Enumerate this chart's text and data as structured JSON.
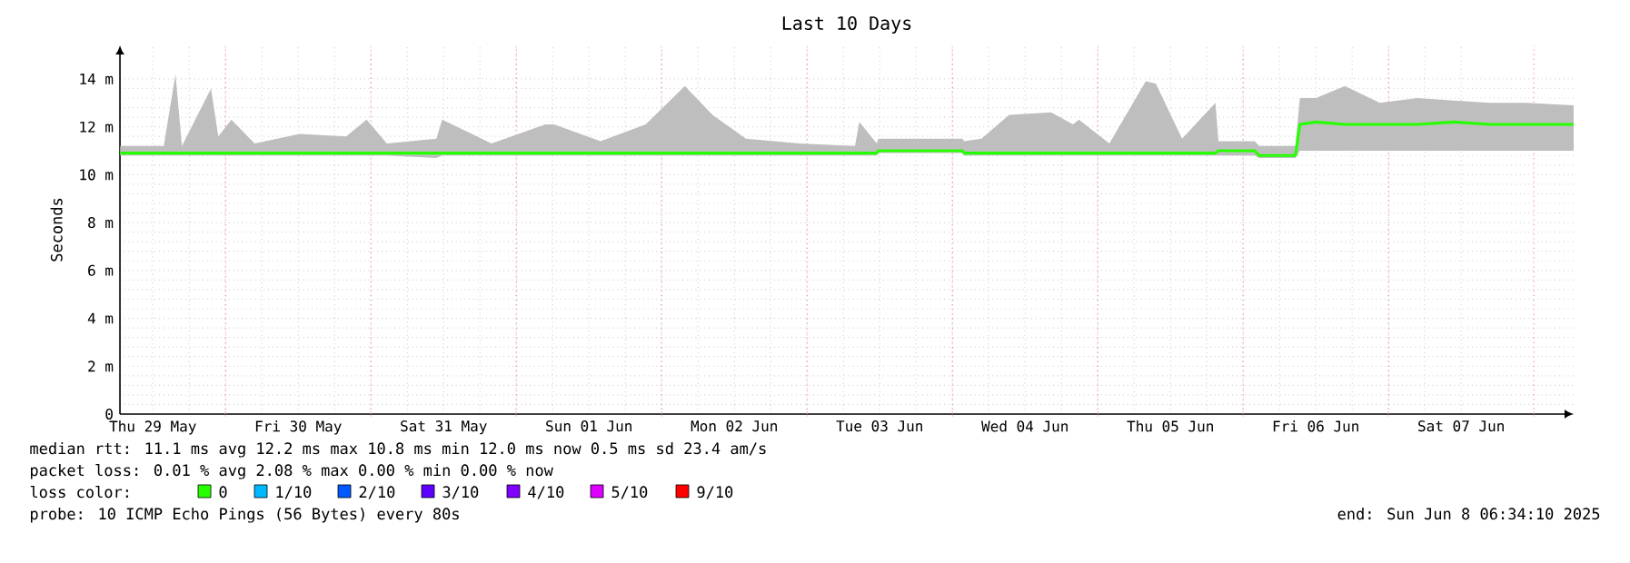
{
  "chart_data": {
    "type": "line",
    "title": "Last 10 Days",
    "ylabel": "Seconds",
    "x": [
      "2025-05-29T06:36",
      "2025-05-29T13:48",
      "2025-05-29T15:44",
      "2025-05-29T16:48",
      "2025-05-29T21:36",
      "2025-05-29T22:48",
      "2025-05-30T00:58",
      "2025-05-30T04:48",
      "2025-05-30T12:14",
      "2025-05-30T19:55",
      "2025-05-30T23:17",
      "2025-05-31T02:38",
      "2025-05-31T10:48",
      "2025-05-31T11:46",
      "2025-05-31T19:55",
      "2025-06-01T04:48",
      "2025-06-01T06:14",
      "2025-06-01T13:55",
      "2025-06-01T21:22",
      "2025-06-02T03:50",
      "2025-06-02T08:24",
      "2025-06-02T13:55",
      "2025-06-02T22:48",
      "2025-06-03T07:55",
      "2025-06-03T08:38",
      "2025-06-03T11:31",
      "2025-06-03T11:46",
      "2025-06-03T16:48",
      "2025-06-04T01:41",
      "2025-06-04T01:55",
      "2025-06-04T04:48",
      "2025-06-04T09:22",
      "2025-06-04T16:19",
      "2025-06-04T19:55",
      "2025-06-04T20:53",
      "2025-06-05T01:55",
      "2025-06-05T07:55",
      "2025-06-05T09:36",
      "2025-06-05T13:55",
      "2025-06-05T19:26",
      "2025-06-05T19:55",
      "2025-06-06T01:55",
      "2025-06-06T02:38",
      "2025-06-06T08:38",
      "2025-06-06T09:22",
      "2025-06-06T12:00",
      "2025-06-06T16:48",
      "2025-06-06T22:34",
      "2025-06-07T04:48",
      "2025-06-07T10:48",
      "2025-06-07T16:48",
      "2025-06-07T22:48",
      "2025-06-08T06:34"
    ],
    "series": [
      {
        "name": "0",
        "color": "#26ff00",
        "values": [
          10.9,
          10.9,
          10.9,
          10.9,
          10.9,
          10.9,
          10.9,
          10.9,
          10.9,
          10.9,
          10.9,
          10.9,
          10.9,
          10.9,
          10.9,
          10.9,
          10.9,
          10.9,
          10.9,
          10.9,
          10.9,
          10.9,
          10.9,
          10.9,
          10.9,
          10.9,
          11.0,
          11.0,
          11.0,
          10.9,
          10.9,
          10.9,
          10.9,
          10.9,
          10.9,
          10.9,
          10.9,
          10.9,
          10.9,
          10.9,
          11.0,
          11.0,
          10.8,
          10.8,
          12.1,
          12.2,
          12.1,
          12.1,
          12.1,
          12.2,
          12.1,
          12.1,
          12.1
        ],
        "lower": [
          10.8,
          10.8,
          10.8,
          10.8,
          10.8,
          10.8,
          10.8,
          10.8,
          10.8,
          10.8,
          10.8,
          10.8,
          10.7,
          10.8,
          10.8,
          10.8,
          10.8,
          10.8,
          10.8,
          10.8,
          10.8,
          10.8,
          10.8,
          10.8,
          10.8,
          10.8,
          10.9,
          10.9,
          10.9,
          10.8,
          10.8,
          10.8,
          10.8,
          10.8,
          10.8,
          10.8,
          10.8,
          10.8,
          10.8,
          10.8,
          10.8,
          10.8,
          10.7,
          10.7,
          11.0,
          11.0,
          11.0,
          11.0,
          11.0,
          11.0,
          11.0,
          11.0,
          11.0
        ],
        "upper": [
          11.2,
          11.2,
          14.2,
          11.2,
          13.6,
          11.6,
          12.3,
          11.3,
          11.7,
          11.6,
          12.3,
          11.3,
          11.5,
          12.3,
          11.3,
          12.1,
          12.1,
          11.4,
          12.1,
          13.7,
          12.5,
          11.5,
          11.3,
          11.2,
          12.2,
          11.3,
          11.5,
          11.5,
          11.5,
          11.4,
          11.5,
          12.5,
          12.6,
          12.1,
          12.3,
          11.3,
          13.9,
          13.8,
          11.5,
          13.0,
          11.4,
          11.4,
          11.2,
          11.2,
          13.2,
          13.2,
          13.7,
          13.0,
          13.2,
          13.1,
          13.0,
          13.0,
          12.9
        ]
      },
      {
        "name": "1/10",
        "color": "#00b8ff",
        "values": [
          null,
          null,
          null,
          null,
          null,
          null,
          null,
          null,
          null,
          null,
          null,
          null,
          null,
          null,
          null,
          null,
          null,
          null,
          null,
          null,
          null,
          null,
          null,
          null,
          null,
          null,
          null,
          null,
          null,
          null,
          null,
          null,
          null,
          null,
          null,
          null,
          null,
          null,
          null,
          null,
          null,
          null,
          null,
          null,
          null,
          null,
          null,
          null,
          null,
          null,
          null,
          null,
          null
        ]
      },
      {
        "name": "2/10",
        "color": "#0059ff",
        "values": [
          null,
          null,
          null,
          null,
          null,
          null,
          null,
          null,
          null,
          null,
          null,
          null,
          null,
          null,
          null,
          null,
          null,
          null,
          null,
          null,
          null,
          null,
          null,
          null,
          null,
          null,
          null,
          null,
          null,
          null,
          null,
          null,
          null,
          null,
          null,
          null,
          null,
          null,
          null,
          null,
          null,
          null,
          null,
          null,
          null,
          null,
          null,
          null,
          null,
          null,
          null,
          null,
          null
        ]
      },
      {
        "name": "3/10",
        "color": "#5e00ff",
        "values": [
          null,
          null,
          null,
          null,
          null,
          null,
          null,
          null,
          null,
          null,
          null,
          null,
          null,
          null,
          null,
          null,
          null,
          null,
          null,
          null,
          null,
          null,
          null,
          null,
          null,
          null,
          null,
          null,
          null,
          null,
          null,
          null,
          null,
          null,
          null,
          null,
          null,
          null,
          null,
          null,
          null,
          null,
          null,
          null,
          null,
          null,
          null,
          null,
          null,
          null,
          null,
          null,
          null
        ]
      },
      {
        "name": "4/10",
        "color": "#7e00ff",
        "values": [
          null,
          null,
          null,
          null,
          null,
          null,
          null,
          null,
          null,
          null,
          null,
          null,
          null,
          null,
          null,
          null,
          null,
          null,
          null,
          null,
          null,
          null,
          null,
          null,
          null,
          null,
          null,
          null,
          null,
          null,
          null,
          null,
          null,
          null,
          null,
          null,
          null,
          null,
          null,
          null,
          null,
          null,
          null,
          null,
          null,
          null,
          null,
          null,
          null,
          null,
          null,
          null,
          null
        ]
      },
      {
        "name": "5/10",
        "color": "#dd00ff",
        "values": [
          null,
          null,
          null,
          null,
          null,
          null,
          null,
          null,
          null,
          null,
          null,
          null,
          null,
          null,
          null,
          null,
          null,
          null,
          null,
          null,
          null,
          null,
          null,
          null,
          null,
          null,
          null,
          null,
          null,
          null,
          null,
          null,
          null,
          null,
          null,
          null,
          null,
          null,
          null,
          null,
          null,
          null,
          null,
          null,
          null,
          null,
          null,
          null,
          null,
          null,
          null,
          null,
          null
        ]
      },
      {
        "name": "9/10",
        "color": "#ff0000",
        "values": [
          null,
          null,
          null,
          null,
          null,
          null,
          null,
          null,
          null,
          null,
          null,
          null,
          null,
          null,
          null,
          null,
          null,
          null,
          null,
          null,
          null,
          null,
          null,
          null,
          null,
          null,
          null,
          null,
          null,
          null,
          null,
          null,
          null,
          null,
          null,
          null,
          null,
          null,
          null,
          null,
          null,
          null,
          null,
          null,
          null,
          null,
          null,
          null,
          null,
          null,
          null,
          null,
          null
        ]
      }
    ],
    "xlim": [
      "2025-05-29T06:34",
      "2025-06-08T06:34"
    ],
    "xticks": [
      {
        "value": "2025-05-29T12:00",
        "label": "Thu 29 May"
      },
      {
        "value": "2025-05-30T12:00",
        "label": "Fri 30 May"
      },
      {
        "value": "2025-05-31T12:00",
        "label": "Sat 31 May"
      },
      {
        "value": "2025-06-01T12:00",
        "label": "Sun 01 Jun"
      },
      {
        "value": "2025-06-02T12:00",
        "label": "Mon 02 Jun"
      },
      {
        "value": "2025-06-03T12:00",
        "label": "Tue 03 Jun"
      },
      {
        "value": "2025-06-04T12:00",
        "label": "Wed 04 Jun"
      },
      {
        "value": "2025-06-05T12:00",
        "label": "Thu 05 Jun"
      },
      {
        "value": "2025-06-06T12:00",
        "label": "Fri 06 Jun"
      },
      {
        "value": "2025-06-07T12:00",
        "label": "Sat 07 Jun"
      },
      {
        "value": "2025-05-30",
        "label": null
      },
      {
        "value": "2025-05-31",
        "label": null
      },
      {
        "value": "2025-06-01",
        "label": null
      },
      {
        "value": "2025-06-02",
        "label": null
      },
      {
        "value": "2025-06-03",
        "label": null
      },
      {
        "value": "2025-06-04",
        "label": null
      },
      {
        "value": "2025-06-05",
        "label": null
      },
      {
        "value": "2025-06-06",
        "label": null
      },
      {
        "value": "2025-06-07",
        "label": null
      },
      {
        "value": "2025-06-08",
        "label": null
      }
    ],
    "ylim": [
      0,
      15.4
    ],
    "yticks": [
      0,
      {
        "value": 2,
        "label": "2 m"
      },
      {
        "value": 4,
        "label": "4 m"
      },
      {
        "value": 6,
        "label": "6 m"
      },
      {
        "value": 8,
        "label": "8 m"
      },
      {
        "value": 10,
        "label": "10 m"
      },
      {
        "value": 12,
        "label": "12 m"
      },
      {
        "value": 14,
        "label": "14 m"
      }
    ],
    "grid": true,
    "legend": "bottom",
    "marker": "none",
    "line_style": "solid",
    "annotations": [
      "median rtt: 11.1 ms avg 12.2 ms max 10.8 ms min 12.0 ms now 0.5 ms sd 23.4 am/s",
      "packet loss: 0.01 % avg 2.08 % max 0.00 % min 0.00 % now",
      "loss color:",
      "probe: 10 ICMP Echo Pings (56 Bytes) every 80s",
      "end: Sun Jun 8 06:34:10 2025"
    ]
  }
}
